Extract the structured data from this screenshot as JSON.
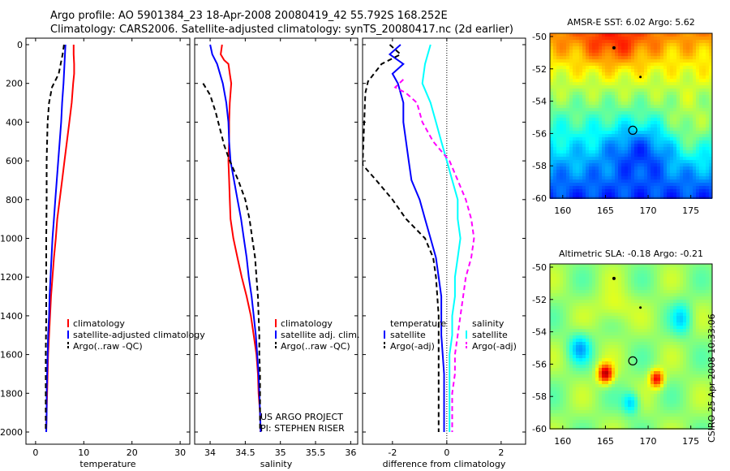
{
  "header": {
    "line1": "Argo profile: AO 5901384_23 18-Apr-2008 20080419_42 55.792S 168.252E",
    "line2": "Climatology: CARS2006. Satellite-adjusted climatology: synTS_20080417.nc (2d earlier)"
  },
  "credit": "CSIRO 25-Apr-2008 10:33:06",
  "colors": {
    "climatology": "#ff0000",
    "satellite": "#0000ff",
    "argo": "#000000",
    "salinity_satellite": "#00ffff",
    "salinity_argo": "#ff00ff"
  },
  "chart_data": [
    {
      "id": "temperature",
      "type": "line",
      "xlabel": "temperature",
      "ylabel": "",
      "xlim": [
        -2,
        32
      ],
      "ylim": [
        2050,
        0
      ],
      "xticks": [
        0,
        10,
        20,
        30
      ],
      "yticks": [
        0,
        200,
        400,
        600,
        800,
        1000,
        1200,
        1400,
        1600,
        1800,
        2000
      ],
      "legend": {
        "position": "bottom-right",
        "entries": [
          "climatology",
          "satellite-adjusted climatology",
          "Argo(..raw -QC)"
        ]
      },
      "series": [
        {
          "name": "climatology",
          "color": "#ff0000",
          "dash": "",
          "points": [
            [
              7.9,
              0
            ],
            [
              7.9,
              50
            ],
            [
              8.0,
              100
            ],
            [
              8.0,
              150
            ],
            [
              7.8,
              200
            ],
            [
              7.5,
              300
            ],
            [
              7.0,
              400
            ],
            [
              6.5,
              500
            ],
            [
              6.0,
              600
            ],
            [
              5.5,
              700
            ],
            [
              5.0,
              800
            ],
            [
              4.5,
              900
            ],
            [
              4.2,
              1000
            ],
            [
              3.8,
              1100
            ],
            [
              3.5,
              1200
            ],
            [
              3.2,
              1300
            ],
            [
              3.0,
              1400
            ],
            [
              2.8,
              1500
            ],
            [
              2.6,
              1600
            ],
            [
              2.5,
              1700
            ],
            [
              2.4,
              1800
            ],
            [
              2.3,
              1900
            ],
            [
              2.2,
              2000
            ]
          ]
        },
        {
          "name": "satellite-adjusted climatology",
          "color": "#0000ff",
          "dash": "",
          "points": [
            [
              6.2,
              0
            ],
            [
              6.1,
              50
            ],
            [
              6.0,
              100
            ],
            [
              5.8,
              200
            ],
            [
              5.5,
              300
            ],
            [
              5.3,
              400
            ],
            [
              5.0,
              500
            ],
            [
              4.7,
              600
            ],
            [
              4.4,
              700
            ],
            [
              4.1,
              800
            ],
            [
              3.8,
              900
            ],
            [
              3.5,
              1000
            ],
            [
              3.3,
              1100
            ],
            [
              3.1,
              1200
            ],
            [
              2.9,
              1300
            ],
            [
              2.8,
              1400
            ],
            [
              2.6,
              1500
            ],
            [
              2.5,
              1600
            ],
            [
              2.4,
              1700
            ],
            [
              2.3,
              1800
            ],
            [
              2.3,
              1900
            ],
            [
              2.2,
              2000
            ]
          ]
        },
        {
          "name": "Argo(..raw -QC)",
          "color": "#000000",
          "dash": "6,4",
          "points": [
            [
              5.9,
              0
            ],
            [
              5.6,
              50
            ],
            [
              5.2,
              100
            ],
            [
              4.8,
              150
            ],
            [
              3.4,
              220
            ],
            [
              2.8,
              300
            ],
            [
              2.5,
              400
            ],
            [
              2.4,
              500
            ],
            [
              2.3,
              600
            ],
            [
              2.3,
              800
            ],
            [
              2.2,
              1000
            ],
            [
              2.2,
              1200
            ],
            [
              2.2,
              1400
            ],
            [
              2.1,
              1600
            ],
            [
              2.1,
              1800
            ],
            [
              2.1,
              2000
            ]
          ]
        }
      ]
    },
    {
      "id": "salinity",
      "type": "line",
      "xlabel": "salinity",
      "ylabel": "",
      "xlim": [
        33.78,
        36.1
      ],
      "ylim": [
        2050,
        0
      ],
      "xticks": [
        34,
        34.5,
        35,
        35.5,
        36
      ],
      "xticklabels": [
        "34",
        "34.5",
        "35",
        "35.5",
        "36"
      ],
      "yticks": [
        0,
        200,
        400,
        600,
        800,
        1000,
        1200,
        1400,
        1600,
        1800,
        2000
      ],
      "legend": {
        "position": "bottom-right",
        "entries": [
          "climatology",
          "satellite adj. clim.",
          "Argo(..raw -QC)"
        ]
      },
      "annotation": [
        "US ARGO PROJECT",
        "PI: STEPHEN RISER"
      ],
      "series": [
        {
          "name": "climatology",
          "color": "#ff0000",
          "dash": "",
          "points": [
            [
              34.17,
              0
            ],
            [
              34.15,
              50
            ],
            [
              34.2,
              80
            ],
            [
              34.26,
              100
            ],
            [
              34.28,
              150
            ],
            [
              34.3,
              200
            ],
            [
              34.28,
              300
            ],
            [
              34.27,
              400
            ],
            [
              34.27,
              500
            ],
            [
              34.26,
              600
            ],
            [
              34.27,
              700
            ],
            [
              34.28,
              800
            ],
            [
              34.29,
              900
            ],
            [
              34.33,
              1000
            ],
            [
              34.39,
              1100
            ],
            [
              34.45,
              1200
            ],
            [
              34.52,
              1300
            ],
            [
              34.58,
              1400
            ],
            [
              34.62,
              1500
            ],
            [
              34.66,
              1600
            ],
            [
              34.68,
              1700
            ],
            [
              34.69,
              1800
            ],
            [
              34.71,
              1900
            ],
            [
              34.72,
              2000
            ]
          ]
        },
        {
          "name": "satellite adj. clim.",
          "color": "#0000ff",
          "dash": "",
          "points": [
            [
              34.0,
              0
            ],
            [
              34.03,
              50
            ],
            [
              34.1,
              100
            ],
            [
              34.18,
              200
            ],
            [
              34.23,
              300
            ],
            [
              34.26,
              400
            ],
            [
              34.27,
              500
            ],
            [
              34.29,
              600
            ],
            [
              34.34,
              700
            ],
            [
              34.39,
              800
            ],
            [
              34.44,
              900
            ],
            [
              34.48,
              1000
            ],
            [
              34.52,
              1100
            ],
            [
              34.55,
              1200
            ],
            [
              34.59,
              1300
            ],
            [
              34.62,
              1400
            ],
            [
              34.65,
              1500
            ],
            [
              34.67,
              1600
            ],
            [
              34.69,
              1700
            ],
            [
              34.7,
              1800
            ],
            [
              34.71,
              1900
            ],
            [
              34.72,
              2000
            ]
          ]
        },
        {
          "name": "Argo(..raw -QC)",
          "color": "#000000",
          "dash": "6,4",
          "points": [
            [
              33.9,
              200
            ],
            [
              34.0,
              260
            ],
            [
              34.08,
              350
            ],
            [
              34.15,
              450
            ],
            [
              34.2,
              520
            ],
            [
              34.28,
              600
            ],
            [
              34.4,
              700
            ],
            [
              34.5,
              800
            ],
            [
              34.56,
              900
            ],
            [
              34.6,
              1000
            ],
            [
              34.64,
              1100
            ],
            [
              34.66,
              1200
            ],
            [
              34.68,
              1300
            ],
            [
              34.69,
              1400
            ],
            [
              34.7,
              1500
            ],
            [
              34.7,
              1600
            ],
            [
              34.71,
              1700
            ],
            [
              34.71,
              1800
            ],
            [
              34.71,
              1900
            ],
            [
              34.71,
              2000
            ]
          ]
        }
      ]
    },
    {
      "id": "difference",
      "type": "line",
      "xlabel": "difference from climatology",
      "ylabel": "",
      "xlim": [
        -3.1,
        2.9
      ],
      "ylim": [
        2050,
        0
      ],
      "xticks": [
        -2,
        0,
        2
      ],
      "yticks": [
        0,
        200,
        400,
        600,
        800,
        1000,
        1200,
        1400,
        1600,
        1800,
        2000
      ],
      "legend": {
        "position": "bottom",
        "groups": [
          "temperature",
          "salinity"
        ],
        "entries": [
          "satellite",
          "Argo(-adj)",
          "satellite",
          "Argo(-adj)"
        ]
      },
      "series": [
        {
          "name": "satellite",
          "group": "temperature",
          "color": "#0000ff",
          "dash": "",
          "points": [
            [
              -1.7,
              0
            ],
            [
              -2.1,
              50
            ],
            [
              -1.6,
              100
            ],
            [
              -2.0,
              150
            ],
            [
              -1.8,
              200
            ],
            [
              -1.6,
              300
            ],
            [
              -1.6,
              400
            ],
            [
              -1.5,
              500
            ],
            [
              -1.4,
              600
            ],
            [
              -1.3,
              700
            ],
            [
              -1.0,
              800
            ],
            [
              -0.8,
              900
            ],
            [
              -0.6,
              1000
            ],
            [
              -0.4,
              1100
            ],
            [
              -0.3,
              1200
            ],
            [
              -0.2,
              1300
            ],
            [
              -0.2,
              1500
            ],
            [
              -0.1,
              1700
            ],
            [
              -0.1,
              1900
            ],
            [
              -0.1,
              2000
            ]
          ]
        },
        {
          "name": "Argo(-adj)",
          "group": "temperature",
          "color": "#000000",
          "dash": "6,4",
          "points": [
            [
              -2.1,
              0
            ],
            [
              -1.7,
              50
            ],
            [
              -2.4,
              100
            ],
            [
              -2.9,
              190
            ],
            [
              -3.0,
              250
            ],
            [
              -3.1,
              620
            ],
            [
              -2.6,
              700
            ],
            [
              -2.0,
              800
            ],
            [
              -1.5,
              900
            ],
            [
              -0.8,
              1000
            ],
            [
              -0.5,
              1100
            ],
            [
              -0.4,
              1200
            ],
            [
              -0.3,
              1400
            ],
            [
              -0.3,
              1600
            ],
            [
              -0.3,
              1800
            ],
            [
              -0.3,
              2000
            ]
          ]
        },
        {
          "name": "satellite",
          "group": "salinity",
          "color": "#00ffff",
          "dash": "",
          "points": [
            [
              -0.6,
              0
            ],
            [
              -0.7,
              50
            ],
            [
              -0.8,
              100
            ],
            [
              -0.9,
              200
            ],
            [
              -0.6,
              300
            ],
            [
              -0.4,
              400
            ],
            [
              -0.2,
              500
            ],
            [
              0.0,
              600
            ],
            [
              0.2,
              700
            ],
            [
              0.4,
              800
            ],
            [
              0.4,
              900
            ],
            [
              0.5,
              1000
            ],
            [
              0.4,
              1100
            ],
            [
              0.3,
              1200
            ],
            [
              0.3,
              1300
            ],
            [
              0.2,
              1400
            ],
            [
              0.2,
              1500
            ],
            [
              0.1,
              1600
            ],
            [
              0.1,
              1700
            ],
            [
              0.1,
              1800
            ],
            [
              0.1,
              1900
            ],
            [
              0.1,
              2000
            ]
          ]
        },
        {
          "name": "Argo(-adj)",
          "group": "salinity",
          "color": "#ff00ff",
          "dash": "6,4",
          "points": [
            [
              -1.6,
              180
            ],
            [
              -1.9,
              220
            ],
            [
              -1.5,
              250
            ],
            [
              -1.1,
              300
            ],
            [
              -0.9,
              400
            ],
            [
              -0.5,
              500
            ],
            [
              0.1,
              600
            ],
            [
              0.4,
              700
            ],
            [
              0.7,
              800
            ],
            [
              0.9,
              900
            ],
            [
              1.0,
              1000
            ],
            [
              0.9,
              1100
            ],
            [
              0.7,
              1200
            ],
            [
              0.6,
              1300
            ],
            [
              0.5,
              1400
            ],
            [
              0.4,
              1500
            ],
            [
              0.3,
              1600
            ],
            [
              0.3,
              1700
            ],
            [
              0.2,
              1800
            ],
            [
              0.2,
              1900
            ],
            [
              0.2,
              2000
            ]
          ]
        }
      ]
    }
  ],
  "maps": [
    {
      "id": "sst",
      "title": "AMSR-E SST: 6.02 Argo: 5.62",
      "xticks": [
        "160",
        "165",
        "170",
        "175"
      ],
      "yticks": [
        "-50",
        "-52",
        "-54",
        "-56",
        "-58",
        "-60"
      ],
      "xlim": [
        158.5,
        177.5
      ],
      "ylim": [
        -60,
        -49.8
      ],
      "float_position": [
        168.2,
        -55.8
      ],
      "field": "sst"
    },
    {
      "id": "sla",
      "title": "Altimetric SLA: -0.18 Argo: -0.21",
      "xticks": [
        "160",
        "165",
        "170",
        "175"
      ],
      "yticks": [
        "-50",
        "-52",
        "-54",
        "-56",
        "-58",
        "-60"
      ],
      "xlim": [
        158.5,
        177.5
      ],
      "ylim": [
        -60,
        -49.8
      ],
      "float_position": [
        168.2,
        -55.8
      ],
      "field": "sla"
    }
  ]
}
